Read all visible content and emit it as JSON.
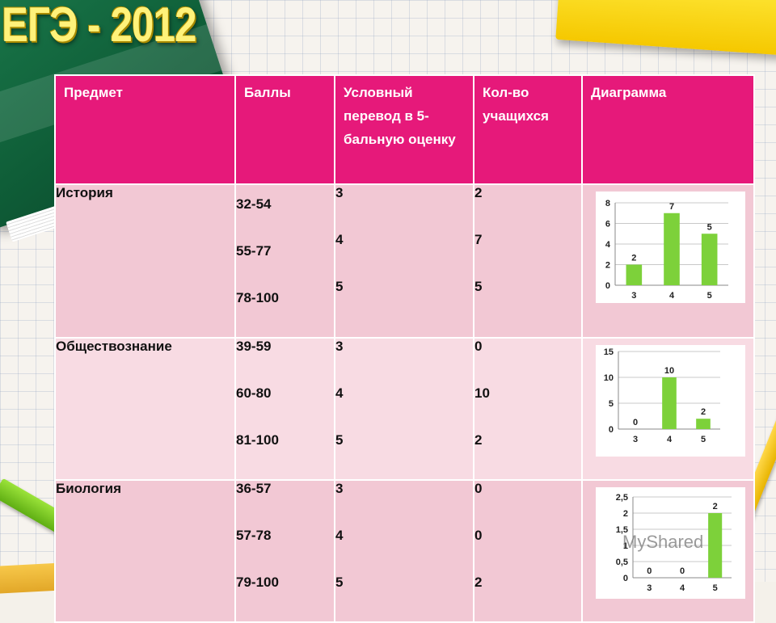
{
  "title": "ЕГЭ - 2012",
  "table": {
    "headers": [
      "Предмет",
      "Баллы",
      "Условный перевод в 5-бальную оценку",
      "Кол-во учащихся",
      "Диаграмма"
    ],
    "rows": [
      {
        "subject": "История",
        "scores": [
          "32-54",
          "55-77",
          "78-100"
        ],
        "grades": [
          "3",
          "4",
          "5"
        ],
        "counts": [
          "2",
          "7",
          "5"
        ]
      },
      {
        "subject": "Обществознание",
        "scores": [
          "39-59",
          "60-80",
          "81-100"
        ],
        "grades": [
          "3",
          "4",
          "5"
        ],
        "counts": [
          "0",
          "10",
          "2"
        ]
      },
      {
        "subject": "Биология",
        "scores": [
          "36-57",
          "57-78",
          "79-100"
        ],
        "grades": [
          "3",
          "4",
          "5"
        ],
        "counts": [
          "0",
          "0",
          "2"
        ]
      }
    ]
  },
  "chart_data": [
    {
      "type": "bar",
      "categories": [
        "3",
        "4",
        "5"
      ],
      "values": [
        2,
        7,
        5
      ],
      "ylim": [
        0,
        8
      ],
      "yticks": [
        "0",
        "2",
        "4",
        "6",
        "8"
      ],
      "data_labels": [
        "2",
        "7",
        "5"
      ],
      "bar_color": "#7dd13a"
    },
    {
      "type": "bar",
      "categories": [
        "3",
        "4",
        "5"
      ],
      "values": [
        0,
        10,
        2
      ],
      "ylim": [
        0,
        15
      ],
      "yticks": [
        "0",
        "5",
        "10",
        "15"
      ],
      "data_labels": [
        "0",
        "10",
        "2"
      ],
      "bar_color": "#7dd13a"
    },
    {
      "type": "bar",
      "categories": [
        "3",
        "4",
        "5"
      ],
      "values": [
        0,
        0,
        2
      ],
      "ylim": [
        0,
        2.5
      ],
      "yticks": [
        "0",
        "0,5",
        "1",
        "1,5",
        "2",
        "2,5"
      ],
      "data_labels": [
        "0",
        "0",
        "2"
      ],
      "bar_color": "#7dd13a"
    }
  ],
  "watermark": "MyShared",
  "colors": {
    "header_bg": "#e6197a",
    "row_a": "#f2c8d4",
    "row_b": "#f8dbe3",
    "title": "#fff27a"
  }
}
